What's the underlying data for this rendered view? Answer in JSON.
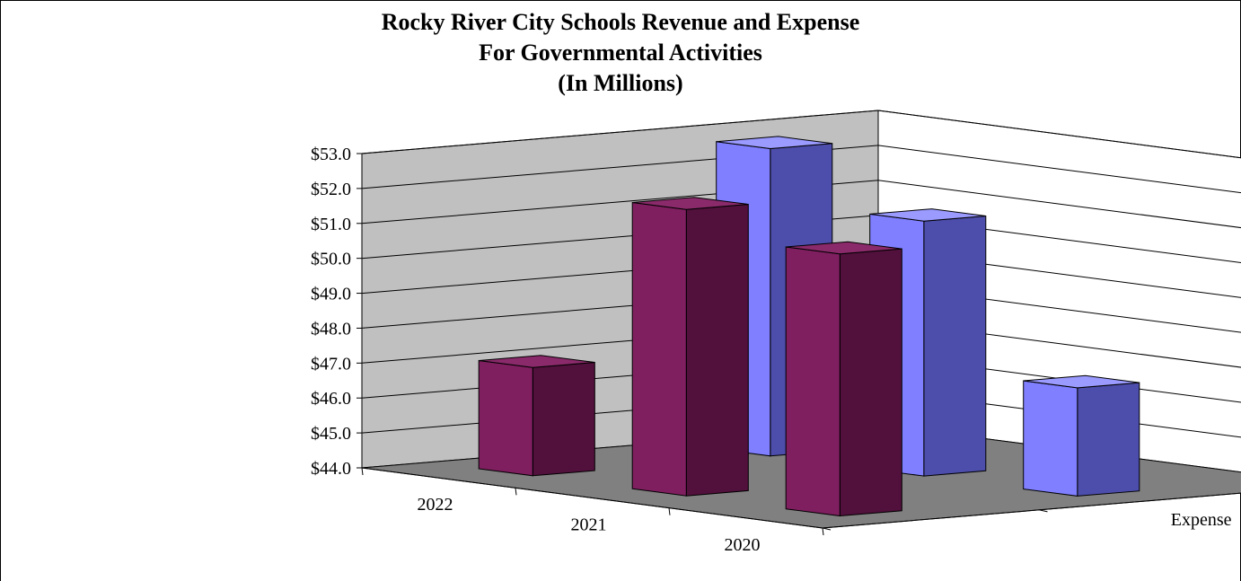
{
  "chart_data": {
    "type": "bar",
    "title": "Rocky River City Schools Revenue and Expense",
    "subtitle_lines": [
      "For Governmental Activities",
      "(In Millions)"
    ],
    "categories": [
      "2022",
      "2021",
      "2020"
    ],
    "series": [
      {
        "values": [
          47.1,
          52.2,
          51.5
        ],
        "color": "#7f1f5f"
      },
      {
        "name": "Expense",
        "values": [
          52.8,
          51.3,
          47.1
        ],
        "color": "#7f7fff"
      }
    ],
    "y_tick_labels": [
      "$44.0",
      "$45.0",
      "$46.0",
      "$47.0",
      "$48.0",
      "$49.0",
      "$50.0",
      "$51.0",
      "$52.0",
      "$53.0"
    ],
    "ylim": [
      44,
      53
    ],
    "grid": true,
    "style": "3d-clustered-column"
  }
}
